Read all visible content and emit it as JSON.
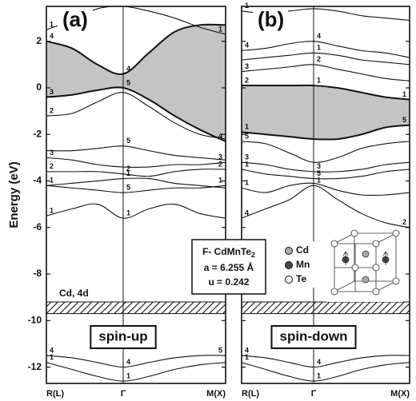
{
  "chart_data": [
    {
      "type": "line",
      "label": "(a)",
      "ylabel": "Energy (eV)",
      "annotation": "spin-up",
      "categories": [
        "R(L)",
        null,
        null,
        "Γ",
        null,
        null,
        null,
        "M(X)"
      ],
      "ylim": [
        -12.7,
        3.5
      ],
      "yticks": [
        2,
        0,
        -2,
        -4,
        -6,
        -8,
        -10,
        -12
      ],
      "show_ytick_labels": true,
      "area": {
        "color": "#c4c4c4",
        "upper": [
          2.0,
          1.7,
          1.0,
          0.6,
          1.5,
          2.4,
          2.7,
          2.7
        ],
        "upper_labels": [
          "4",
          "4",
          null
        ],
        "lower": [
          -0.4,
          -0.3,
          -0.1,
          0.0,
          -0.5,
          -1.2,
          -1.8,
          -2.3
        ],
        "lower_labels": [
          "3",
          "5",
          "4"
        ]
      },
      "cd_band": {
        "values": [
          -9.7,
          -9.2
        ],
        "label": "Cd, 4d"
      },
      "series": [
        {
          "color": "#111",
          "values": [
            2.5,
            2.9,
            3.4,
            3.5,
            3.3,
            3.0,
            2.6,
            2.3
          ],
          "labels": [
            "1",
            null,
            "1"
          ]
        },
        {
          "color": "#111",
          "values": [
            -1.2,
            -1.1,
            -0.6,
            -0.2,
            -0.8,
            -1.5,
            -2.0,
            -2.2
          ],
          "labels": [
            "2",
            null,
            null
          ]
        },
        {
          "color": "#111",
          "values": [
            -2.7,
            -2.7,
            -2.6,
            -2.5,
            -2.7,
            -2.9,
            -3.0,
            -3.1
          ],
          "labels": [
            null,
            "5",
            null
          ]
        },
        {
          "color": "#111",
          "values": [
            -3.0,
            -3.1,
            -3.3,
            -3.4,
            -3.4,
            -3.3,
            -3.3,
            -3.2
          ],
          "labels": [
            "3",
            null,
            "3"
          ]
        },
        {
          "color": "#111",
          "values": [
            -3.6,
            -3.6,
            -3.6,
            -3.7,
            -3.8,
            -3.6,
            -3.5,
            -3.5
          ],
          "labels": [
            "2",
            "2",
            "2"
          ]
        },
        {
          "color": "#111",
          "values": [
            -4.2,
            -4.1,
            -4.0,
            -3.9,
            -3.9,
            -4.1,
            -4.2,
            -4.3
          ],
          "labels": [
            "1",
            "1",
            null
          ]
        },
        {
          "color": "#111",
          "values": [
            -4.2,
            -4.3,
            -4.4,
            -4.5,
            -4.4,
            -4.3,
            -4.3,
            -4.2
          ],
          "labels": [
            null,
            "5",
            "1"
          ]
        },
        {
          "color": "#111",
          "values": [
            -5.5,
            -5.2,
            -5.0,
            -5.6,
            -5.2,
            -5.0,
            -5.4,
            -5.6
          ],
          "labels": [
            "1",
            "1",
            null
          ]
        },
        {
          "color": "#111",
          "values": [
            -11.5,
            -11.6,
            -11.8,
            -12.0,
            -11.8,
            -11.6,
            -11.5,
            -11.5
          ],
          "labels": [
            "4",
            "4",
            "5"
          ]
        },
        {
          "color": "#111",
          "values": [
            -11.8,
            -12.1,
            -12.4,
            -12.6,
            -12.4,
            -12.1,
            -11.9,
            -11.8
          ],
          "labels": [
            "1",
            "1",
            null
          ]
        }
      ]
    },
    {
      "type": "line",
      "label": "(b)",
      "annotation": "spin-down",
      "categories": [
        "R(L)",
        null,
        null,
        "Γ",
        null,
        null,
        null,
        "M(X)"
      ],
      "ylim": [
        -12.7,
        3.5
      ],
      "yticks": [
        2,
        0,
        -2,
        -4,
        -6,
        -8,
        -10,
        -12
      ],
      "show_ytick_labels": false,
      "area": {
        "color": "#c4c4c4",
        "upper": [
          0.1,
          0.1,
          0.1,
          0.1,
          0.0,
          -0.2,
          -0.4,
          -0.5
        ],
        "upper_labels": [
          "2",
          "1",
          "1"
        ],
        "lower": [
          -1.9,
          -2.0,
          -2.1,
          -2.2,
          -2.2,
          -2.0,
          -1.7,
          -1.6
        ],
        "lower_labels": [
          "1",
          null,
          "5"
        ]
      },
      "cd_band": {
        "values": [
          -9.7,
          -9.2
        ]
      },
      "series": [
        {
          "color": "#111",
          "values": [
            3.3,
            3.2,
            3.3,
            3.4,
            3.3,
            3.1,
            3.0,
            2.9
          ],
          "labels": [
            "1",
            null,
            null
          ]
        },
        {
          "color": "#111",
          "values": [
            1.6,
            1.7,
            1.9,
            2.0,
            1.8,
            1.6,
            1.5,
            1.3
          ],
          "labels": [
            "4",
            "4",
            null
          ]
        },
        {
          "color": "#111",
          "values": [
            1.2,
            1.3,
            1.4,
            1.5,
            1.4,
            1.2,
            1.1,
            1.0
          ],
          "labels": [
            null,
            "1",
            null
          ]
        },
        {
          "color": "#111",
          "values": [
            0.7,
            0.8,
            0.9,
            1.0,
            0.8,
            0.6,
            0.4,
            0.3
          ],
          "labels": [
            "3",
            "2",
            null
          ]
        },
        {
          "color": "#111",
          "values": [
            -2.3,
            -2.4,
            -2.8,
            -3.2,
            -3.0,
            -2.6,
            -2.4,
            -2.3
          ],
          "labels": [
            "5",
            null,
            null
          ]
        },
        {
          "color": "#111",
          "values": [
            -3.2,
            -3.3,
            -3.5,
            -3.6,
            -3.6,
            -3.5,
            -3.3,
            -3.2
          ],
          "labels": [
            "3",
            "3",
            null
          ]
        },
        {
          "color": "#111",
          "values": [
            -3.5,
            -3.7,
            -3.8,
            -3.9,
            -3.9,
            -3.8,
            -3.6,
            -3.5
          ],
          "labels": [
            "1",
            "5",
            null
          ]
        },
        {
          "color": "#111",
          "values": [
            -4.3,
            -4.5,
            -4.2,
            -4.1,
            -4.4,
            -4.6,
            -4.6,
            -4.5
          ],
          "labels": [
            "1",
            null,
            null
          ]
        },
        {
          "color": "#111",
          "values": [
            -5.6,
            -5.2,
            -4.8,
            -4.2,
            -4.8,
            -5.4,
            -5.8,
            -6.0
          ],
          "labels": [
            "4",
            "1",
            "2"
          ]
        },
        {
          "color": "#111",
          "values": [
            -11.5,
            -11.6,
            -11.8,
            -12.0,
            -11.8,
            -11.6,
            -11.5,
            -11.5
          ],
          "labels": [
            "4",
            "4",
            null
          ]
        },
        {
          "color": "#111",
          "values": [
            -11.8,
            -12.1,
            -12.4,
            -12.6,
            -12.4,
            -12.1,
            -11.9,
            -11.8
          ],
          "labels": [
            "1",
            "1",
            null
          ]
        }
      ]
    }
  ],
  "structure_box": {
    "formula": "F- CdMnTe",
    "subscript": "2",
    "lines": [
      "a = 6.255 Å",
      "u = 0.242"
    ]
  },
  "atoms": [
    "Cd",
    "Mn",
    "Te"
  ]
}
